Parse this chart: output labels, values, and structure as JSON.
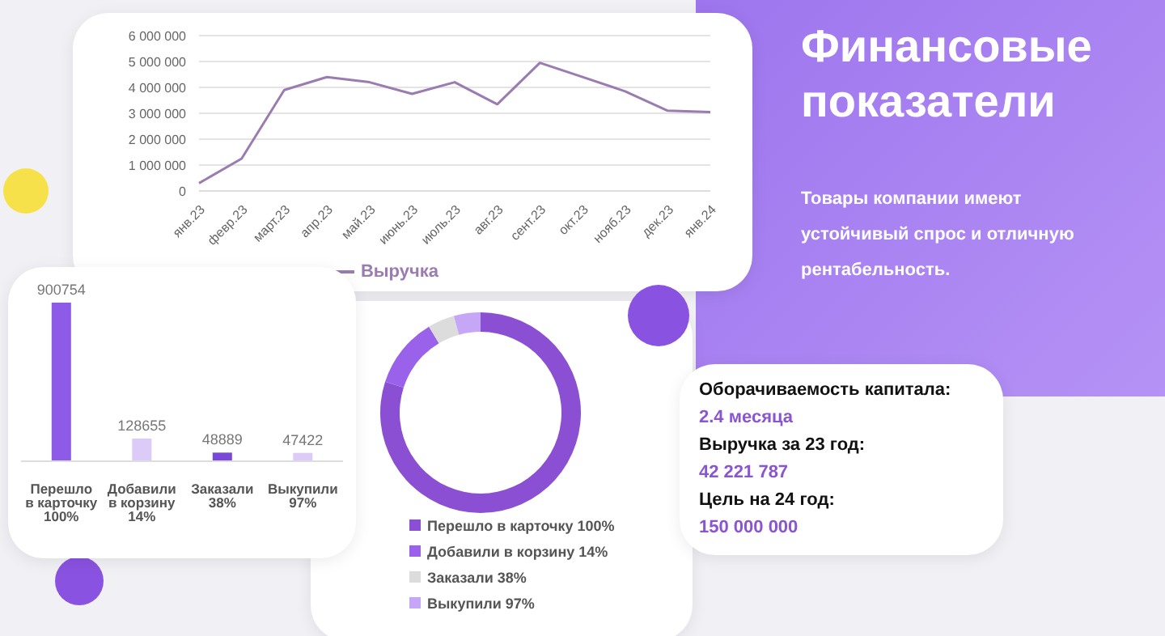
{
  "chart_data": [
    {
      "type": "line",
      "categories": [
        "янв.23",
        "февр.23",
        "март.23",
        "апр.23",
        "май.23",
        "июнь.23",
        "июль.23",
        "авг.23",
        "сент.23",
        "окт.23",
        "нояб.23",
        "дек.23",
        "янв.24"
      ],
      "series": [
        {
          "name": "Выручка",
          "color": "#9a7cb0",
          "values": [
            300000,
            1250000,
            3900000,
            4400000,
            4200000,
            3750000,
            4200000,
            3350000,
            4950000,
            4400000,
            3850000,
            3100000,
            3050000
          ]
        }
      ],
      "ylim": [
        0,
        6000000
      ],
      "yticks": [
        {
          "value": 0,
          "label": "0"
        },
        {
          "value": 1000000,
          "label": "1 000 000"
        },
        {
          "value": 2000000,
          "label": "2 000 000"
        },
        {
          "value": 3000000,
          "label": "3 000 000"
        },
        {
          "value": 4000000,
          "label": "4 000 000"
        },
        {
          "value": 5000000,
          "label": "5 000 000"
        },
        {
          "value": 6000000,
          "label": "6 000 000"
        }
      ],
      "grid": "y",
      "legend": "bottom",
      "marker": "none",
      "line_style": "solid"
    },
    {
      "type": "bar",
      "categories": [
        "Перешло в карточку 100%",
        "Добавили в корзину 14%",
        "Заказали 38%",
        "Выкупили 97%"
      ],
      "values": [
        900754,
        128655,
        48889,
        47422
      ],
      "colors": [
        "#8e5ae8",
        "#dccbf9",
        "#7a48d8",
        "#dccbf9"
      ],
      "data_labels": true
    },
    {
      "type": "donut",
      "categories": [
        "Перешло в карточку 100%",
        "Добавили в корзину 14%",
        "Заказали 38%",
        "Выкупили 97%"
      ],
      "values": [
        80.0,
        11.4,
        4.3,
        4.3
      ],
      "colors": [
        "#8a4fd2",
        "#9a62ea",
        "#dcdcdc",
        "#c6a6f6"
      ],
      "legend": "bottom"
    },
    {
      "type": "other",
      "title": "Финансовые показатели",
      "subtitle": "Товары компании имеют устойчивый спрос и отличную рентабельность.",
      "annotations": [
        "Оборачиваемость капитала:",
        "2.4 месяца",
        "Выручка за 23 год:",
        "42 221 787",
        "Цель на 24 год:",
        "150 000 000"
      ]
    }
  ]
}
